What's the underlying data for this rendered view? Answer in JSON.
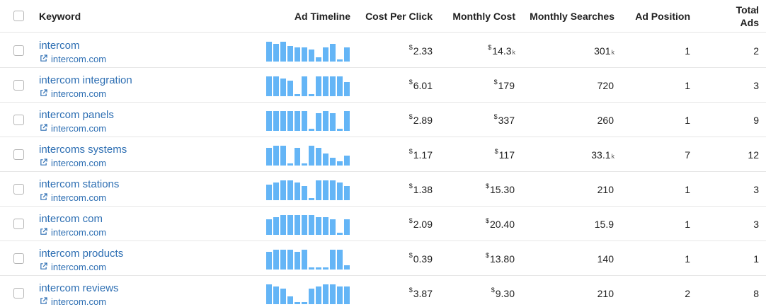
{
  "header": {
    "keyword": "Keyword",
    "ad_timeline": "Ad Timeline",
    "cost_per_click": "Cost Per Click",
    "monthly_cost": "Monthly Cost",
    "monthly_searches": "Monthly Searches",
    "ad_position": "Ad Position",
    "total_ads_line1": "Total",
    "total_ads_line2": "Ads"
  },
  "colors": {
    "link": "#2e6fb3",
    "timeline_bar": "#64b5f6",
    "border": "#e6e6e6"
  },
  "rows": [
    {
      "keyword": "intercom",
      "domain": "intercom.com",
      "timeline": [
        1,
        0.9,
        1,
        0.8,
        0.7,
        0.7,
        0.6,
        0.2,
        0.7,
        0.9,
        0.1,
        0.7
      ],
      "cpc": "2.33",
      "cpc_currency": "$",
      "monthly_cost": "14.3",
      "monthly_cost_currency": "$",
      "monthly_cost_unit": "k",
      "monthly_searches": "301",
      "monthly_searches_unit": "k",
      "ad_position": "1",
      "total_ads": "2"
    },
    {
      "keyword": "intercom integration",
      "domain": "intercom.com",
      "timeline": [
        1,
        1,
        0.9,
        0.8,
        0.1,
        1,
        0.1,
        1,
        1,
        1,
        1,
        0.7
      ],
      "cpc": "6.01",
      "cpc_currency": "$",
      "monthly_cost": "179",
      "monthly_cost_currency": "$",
      "monthly_cost_unit": "",
      "monthly_searches": "720",
      "monthly_searches_unit": "",
      "ad_position": "1",
      "total_ads": "3"
    },
    {
      "keyword": "intercom panels",
      "domain": "intercom.com",
      "timeline": [
        1,
        1,
        1,
        1,
        1,
        1,
        0.1,
        0.9,
        1,
        0.9,
        0.1,
        1
      ],
      "cpc": "2.89",
      "cpc_currency": "$",
      "monthly_cost": "337",
      "monthly_cost_currency": "$",
      "monthly_cost_unit": "",
      "monthly_searches": "260",
      "monthly_searches_unit": "",
      "ad_position": "1",
      "total_ads": "9"
    },
    {
      "keyword": "intercoms systems",
      "domain": "intercom.com",
      "timeline": [
        0.9,
        1,
        1,
        0.1,
        0.9,
        0.1,
        1,
        0.9,
        0.6,
        0.4,
        0.2,
        0.5
      ],
      "cpc": "1.17",
      "cpc_currency": "$",
      "monthly_cost": "117",
      "monthly_cost_currency": "$",
      "monthly_cost_unit": "",
      "monthly_searches": "33.1",
      "monthly_searches_unit": "k",
      "ad_position": "7",
      "total_ads": "12"
    },
    {
      "keyword": "intercom stations",
      "domain": "intercom.com",
      "timeline": [
        0.8,
        0.9,
        1,
        1,
        0.9,
        0.7,
        0.1,
        1,
        1,
        1,
        0.9,
        0.7
      ],
      "cpc": "1.38",
      "cpc_currency": "$",
      "monthly_cost": "15.30",
      "monthly_cost_currency": "$",
      "monthly_cost_unit": "",
      "monthly_searches": "210",
      "monthly_searches_unit": "",
      "ad_position": "1",
      "total_ads": "3"
    },
    {
      "keyword": "intercom com",
      "domain": "intercom.com",
      "timeline": [
        0.8,
        0.9,
        1,
        1,
        1,
        1,
        1,
        0.9,
        0.9,
        0.8,
        0.1,
        0.8
      ],
      "cpc": "2.09",
      "cpc_currency": "$",
      "monthly_cost": "20.40",
      "monthly_cost_currency": "$",
      "monthly_cost_unit": "",
      "monthly_searches": "15.9",
      "monthly_searches_unit": "",
      "ad_position": "1",
      "total_ads": "3"
    },
    {
      "keyword": "intercom products",
      "domain": "intercom.com",
      "timeline": [
        0.9,
        1,
        1,
        1,
        0.9,
        1,
        0.1,
        0.1,
        0.1,
        1,
        1,
        0.2
      ],
      "cpc": "0.39",
      "cpc_currency": "$",
      "monthly_cost": "13.80",
      "monthly_cost_currency": "$",
      "monthly_cost_unit": "",
      "monthly_searches": "140",
      "monthly_searches_unit": "",
      "ad_position": "1",
      "total_ads": "1"
    },
    {
      "keyword": "intercom reviews",
      "domain": "intercom.com",
      "timeline": [
        1,
        0.9,
        0.8,
        0.4,
        0.1,
        0.1,
        0.8,
        0.9,
        1,
        1,
        0.9,
        0.9
      ],
      "cpc": "3.87",
      "cpc_currency": "$",
      "monthly_cost": "9.30",
      "monthly_cost_currency": "$",
      "monthly_cost_unit": "",
      "monthly_searches": "210",
      "monthly_searches_unit": "",
      "ad_position": "2",
      "total_ads": "8"
    }
  ]
}
